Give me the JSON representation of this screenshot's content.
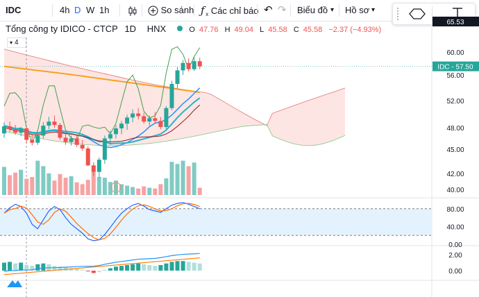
{
  "toolbar": {
    "symbol": "IDC",
    "intervals": [
      "4h",
      "D",
      "W",
      "1h"
    ],
    "compare_label": "So sánh",
    "indicators_label": "Các chỉ báo",
    "chart_type_label": "Biểu đồ",
    "profile_label": "Hồ sơ"
  },
  "legend": {
    "title": "Tổng công ty IDICO - CTCP",
    "interval": "1D",
    "exchange": "HNX",
    "o_label": "O",
    "o": "47.76",
    "h_label": "H",
    "h": "49.04",
    "l_label": "L",
    "l": "45.58",
    "c_label": "C",
    "c": "45.58",
    "change": "−2.37 (−4.93%)",
    "study_count": "4"
  },
  "price_badge": "IDC - 57.50",
  "top_axis_label": "65.53",
  "colors": {
    "up": "#26a69a",
    "down": "#ef5350",
    "vol_up": "#80cbc4",
    "vol_down": "#f5a3a3",
    "ma_orange": "#f7a21b",
    "line_blue": "#2196f3",
    "line_teal": "#26b5c8",
    "line_darkred": "#8b1a1a",
    "cloud_red": "#fde2e1",
    "cloud_green": "#e6f4ea",
    "stoch_band": "#e3f2fd",
    "macd_blue": "#2196f3",
    "macd_orange": "#ff7f0e"
  },
  "chart_data": {
    "type": "candlestick",
    "price_axis": {
      "ticks": [
        "60.00",
        "56.00",
        "52.00",
        "48.00",
        "45.00",
        "42.00",
        "40.00"
      ]
    },
    "stoch_axis": {
      "ticks": [
        "80.00",
        "40.00",
        "0.00"
      ],
      "band": [
        20,
        80
      ]
    },
    "macd_axis": {
      "ticks": [
        "2.00",
        "0.00"
      ]
    },
    "candles": [
      [
        47.2,
        48.8,
        46.6,
        48.2
      ],
      [
        48.2,
        48.9,
        47.4,
        47.8
      ],
      [
        47.8,
        48.4,
        47.0,
        47.3
      ],
      [
        47.3,
        48.1,
        46.8,
        47.9
      ],
      [
        47.9,
        48.0,
        45.8,
        46.3
      ],
      [
        46.3,
        47.0,
        45.5,
        45.9
      ],
      [
        45.9,
        47.2,
        45.6,
        46.9
      ],
      [
        46.9,
        48.8,
        46.5,
        48.3
      ],
      [
        48.3,
        49.6,
        47.8,
        48.9
      ],
      [
        48.9,
        49.8,
        48.0,
        48.4
      ],
      [
        48.4,
        48.7,
        46.3,
        46.6
      ],
      [
        46.6,
        47.4,
        45.6,
        46.0
      ],
      [
        46.0,
        46.9,
        45.5,
        46.5
      ],
      [
        46.5,
        46.9,
        45.3,
        45.6
      ],
      [
        45.6,
        46.3,
        44.8,
        45.1
      ],
      [
        45.1,
        45.4,
        42.9,
        43.0
      ],
      [
        43.0,
        43.4,
        41.7,
        42.2
      ],
      [
        42.2,
        44.0,
        41.5,
        43.7
      ],
      [
        43.7,
        46.9,
        43.2,
        46.5
      ],
      [
        46.5,
        47.6,
        45.7,
        47.1
      ],
      [
        47.1,
        48.4,
        46.5,
        47.9
      ],
      [
        47.9,
        49.0,
        47.1,
        48.6
      ],
      [
        48.6,
        49.9,
        47.7,
        49.5
      ],
      [
        49.5,
        50.7,
        48.8,
        50.1
      ],
      [
        50.1,
        50.9,
        49.2,
        49.7
      ],
      [
        49.7,
        50.2,
        48.6,
        48.9
      ],
      [
        48.9,
        49.8,
        48.3,
        49.4
      ],
      [
        49.4,
        50.3,
        48.6,
        49.0
      ],
      [
        49.0,
        49.6,
        47.8,
        48.1
      ],
      [
        48.1,
        51.2,
        47.8,
        50.9
      ],
      [
        50.9,
        55.1,
        50.6,
        54.6
      ],
      [
        54.6,
        57.4,
        53.9,
        56.8
      ],
      [
        56.8,
        58.6,
        56.0,
        58.1
      ],
      [
        58.1,
        58.9,
        56.6,
        57.0
      ],
      [
        57.0,
        59.1,
        56.7,
        58.4
      ],
      [
        58.4,
        59.0,
        57.0,
        57.5
      ]
    ],
    "volume_direction": [
      "up",
      "down",
      "down",
      "up",
      "down",
      "down",
      "up",
      "up",
      "up",
      "down",
      "down",
      "down",
      "up",
      "down",
      "down",
      "down",
      "down",
      "up",
      "up",
      "up",
      "up",
      "up",
      "up",
      "up",
      "down",
      "down",
      "up",
      "down",
      "down",
      "up",
      "up",
      "up",
      "up",
      "down",
      "up",
      "down"
    ],
    "volume_levels": [
      0.78,
      0.55,
      0.62,
      0.7,
      0.45,
      0.5,
      0.95,
      0.8,
      0.6,
      0.4,
      0.58,
      0.48,
      0.52,
      0.35,
      0.3,
      0.42,
      0.64,
      0.5,
      0.48,
      0.36,
      0.4,
      0.3,
      0.26,
      0.22,
      0.18,
      0.24,
      0.2,
      0.18,
      0.3,
      0.46,
      0.92,
      0.86,
      0.95,
      0.8,
      0.9,
      0.2
    ]
  }
}
